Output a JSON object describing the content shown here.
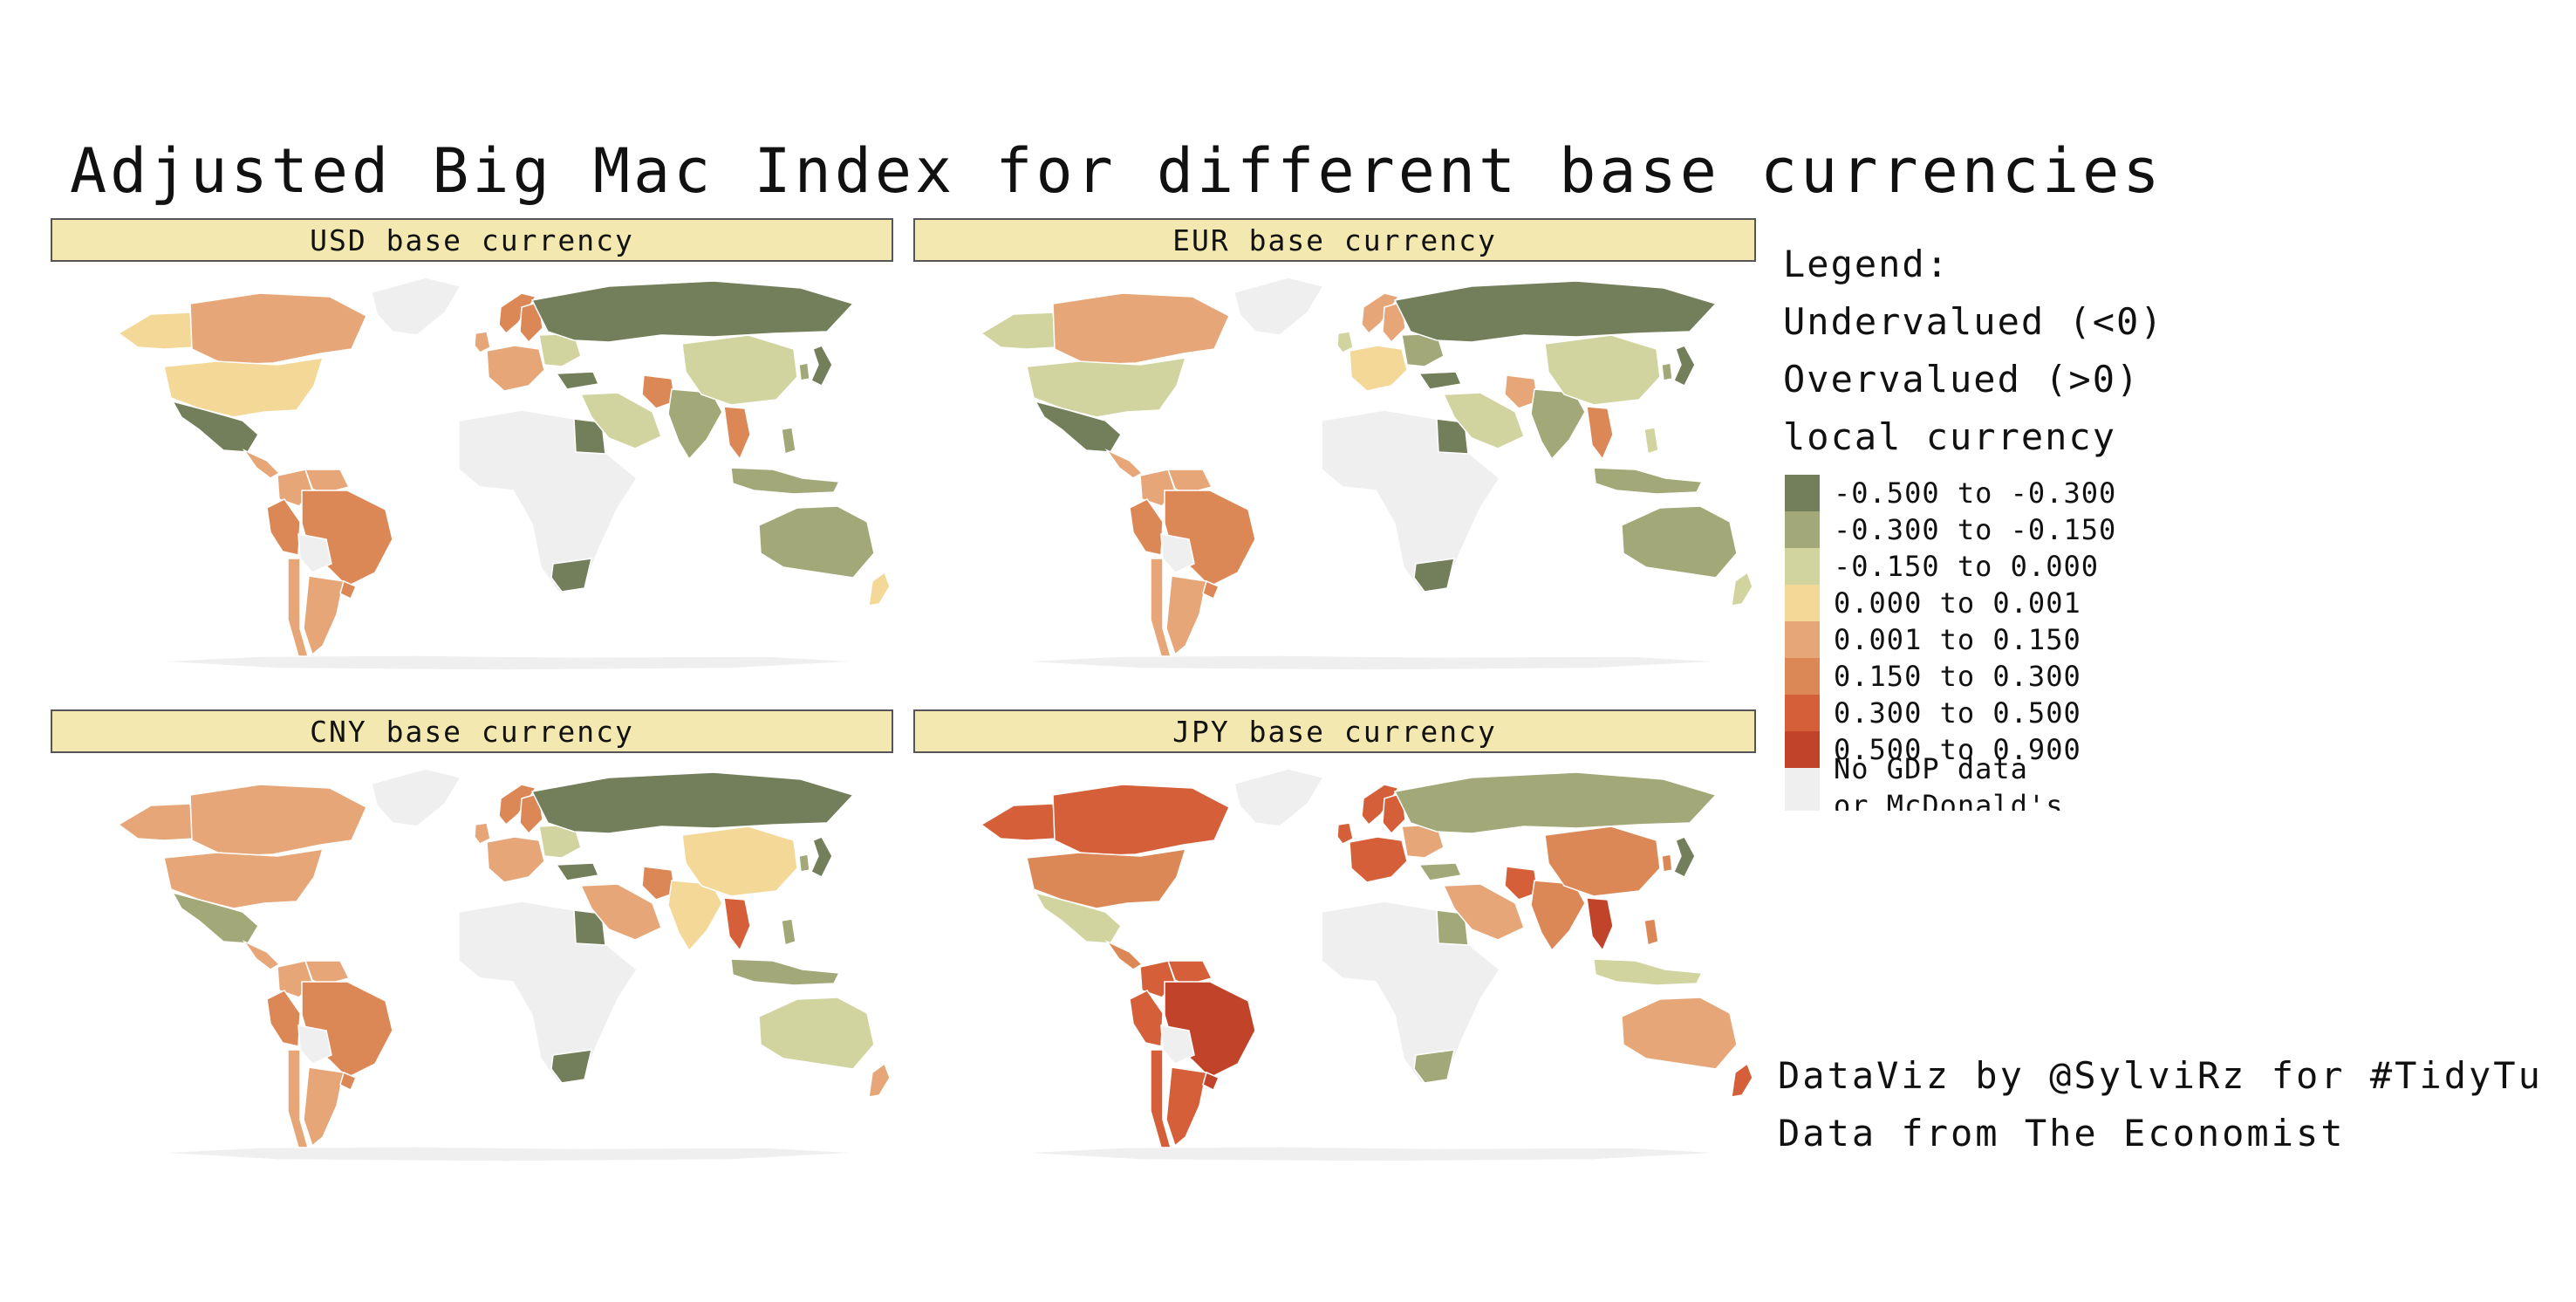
{
  "title": "Adjusted Big Mac Index for different base currencies",
  "panels": [
    {
      "label": "USD base currency",
      "fills": {
        "alaska": "#f3d898",
        "canada": "#e6a678",
        "usa": "#f3d898",
        "mexico": "#727f5a",
        "central_america": "#e6a678",
        "colombia": "#e6a678",
        "venezuela": "#e6a678",
        "peru": "#dc8756",
        "brazil": "#dc8756",
        "bolivia": "#efefef",
        "argentina": "#e6a678",
        "chile": "#e6a678",
        "uruguay": "#dc8756",
        "norway": "#dc8756",
        "sweden": "#dc8756",
        "western_europe": "#e6a678",
        "uk": "#e6a678",
        "eastern_europe": "#d2d4a0",
        "turkey": "#727f5a",
        "russia": "#727f5a",
        "middle_east": "#d2d4a0",
        "egypt": "#727f5a",
        "pakistan": "#dc8756",
        "india": "#a2a877",
        "china": "#d2d4a0",
        "se_asia_main": "#dc8756",
        "indonesia": "#a2a877",
        "japan": "#727f5a",
        "korea": "#a2a877",
        "philippines": "#a2a877",
        "south_africa": "#727f5a",
        "australia": "#a2a877",
        "new_zealand": "#f3d898"
      }
    },
    {
      "label": "EUR base currency",
      "fills": {
        "alaska": "#d2d4a0",
        "canada": "#e6a678",
        "usa": "#d2d4a0",
        "mexico": "#727f5a",
        "central_america": "#e6a678",
        "colombia": "#e6a678",
        "venezuela": "#e6a678",
        "peru": "#dc8756",
        "brazil": "#dc8756",
        "bolivia": "#efefef",
        "argentina": "#e6a678",
        "chile": "#e6a678",
        "uruguay": "#dc8756",
        "norway": "#e6a678",
        "sweden": "#e6a678",
        "western_europe": "#f3d898",
        "uk": "#d2d4a0",
        "eastern_europe": "#a2a877",
        "turkey": "#727f5a",
        "russia": "#727f5a",
        "middle_east": "#d2d4a0",
        "egypt": "#727f5a",
        "pakistan": "#e6a678",
        "india": "#a2a877",
        "china": "#d2d4a0",
        "se_asia_main": "#dc8756",
        "indonesia": "#a2a877",
        "japan": "#727f5a",
        "korea": "#a2a877",
        "philippines": "#d2d4a0",
        "south_africa": "#727f5a",
        "australia": "#a2a877",
        "new_zealand": "#d2d4a0"
      }
    },
    {
      "label": "CNY base currency",
      "fills": {
        "alaska": "#e6a678",
        "canada": "#e6a678",
        "usa": "#e6a678",
        "mexico": "#a2a877",
        "central_america": "#e6a678",
        "colombia": "#e6a678",
        "venezuela": "#e6a678",
        "peru": "#dc8756",
        "brazil": "#dc8756",
        "bolivia": "#efefef",
        "argentina": "#e6a678",
        "chile": "#e6a678",
        "uruguay": "#dc8756",
        "norway": "#dc8756",
        "sweden": "#dc8756",
        "western_europe": "#e6a678",
        "uk": "#e6a678",
        "eastern_europe": "#d2d4a0",
        "turkey": "#727f5a",
        "russia": "#727f5a",
        "middle_east": "#e6a678",
        "egypt": "#727f5a",
        "pakistan": "#dc8756",
        "india": "#f3d898",
        "china": "#f3d898",
        "se_asia_main": "#d55f38",
        "indonesia": "#a2a877",
        "japan": "#727f5a",
        "korea": "#a2a877",
        "philippines": "#a2a877",
        "south_africa": "#727f5a",
        "australia": "#d2d4a0",
        "new_zealand": "#e6a678"
      }
    },
    {
      "label": "JPY base currency",
      "fills": {
        "alaska": "#d55f38",
        "canada": "#d55f38",
        "usa": "#dc8756",
        "mexico": "#d2d4a0",
        "central_america": "#dc8756",
        "colombia": "#d55f38",
        "venezuela": "#d55f38",
        "peru": "#d55f38",
        "brazil": "#c1432a",
        "bolivia": "#efefef",
        "argentina": "#d55f38",
        "chile": "#d55f38",
        "uruguay": "#c1432a",
        "norway": "#d55f38",
        "sweden": "#d55f38",
        "western_europe": "#d55f38",
        "uk": "#d55f38",
        "eastern_europe": "#e6a678",
        "turkey": "#a2a877",
        "russia": "#a2a877",
        "middle_east": "#e6a678",
        "egypt": "#a2a877",
        "pakistan": "#d55f38",
        "india": "#dc8756",
        "china": "#dc8756",
        "se_asia_main": "#c1432a",
        "indonesia": "#d2d4a0",
        "japan": "#727f5a",
        "korea": "#dc8756",
        "philippines": "#dc8756",
        "south_africa": "#a2a877",
        "australia": "#e6a678",
        "new_zealand": "#d55f38"
      }
    }
  ],
  "legend": {
    "heading": "Legend:",
    "line_under": "Undervalued (<0)",
    "line_over": "Overvalued (>0)",
    "subtitle": "local currency",
    "bins": [
      {
        "label": "-0.500 to -0.300",
        "color": "#727f5a"
      },
      {
        "label": "-0.300 to -0.150",
        "color": "#a2a877"
      },
      {
        "label": "-0.150 to 0.000",
        "color": "#d2d4a0"
      },
      {
        "label": "0.000 to 0.001",
        "color": "#f3d898"
      },
      {
        "label": "0.001 to 0.150",
        "color": "#e6a678"
      },
      {
        "label": "0.150 to 0.300",
        "color": "#dc8756"
      },
      {
        "label": "0.300 to 0.500",
        "color": "#d55f38"
      },
      {
        "label": "0.500 to 0.900",
        "color": "#c1432a"
      }
    ],
    "no_data": {
      "label": "No GDP data\nor McDonald's",
      "color": "#efefef"
    }
  },
  "credits": {
    "line1": "DataViz by @SylviRz for #TidyTu",
    "line2": "Data from The Economist"
  },
  "colors": {
    "strip_bg": "#f3e8b0",
    "no_data": "#efefef"
  }
}
